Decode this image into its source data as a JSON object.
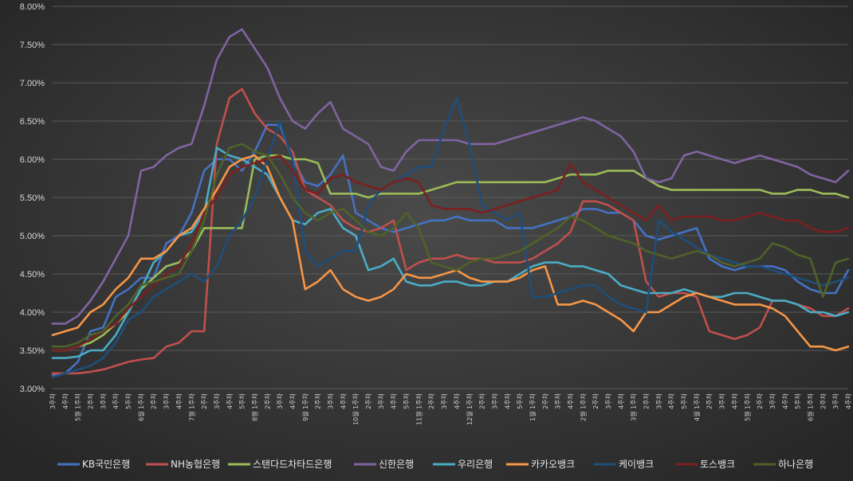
{
  "chart_data": {
    "type": "line",
    "y_unit": "%",
    "ylim": [
      3.0,
      8.0
    ],
    "y_ticks": [
      "3.00%",
      "3.50%",
      "4.00%",
      "4.50%",
      "5.00%",
      "5.50%",
      "6.00%",
      "6.50%",
      "7.00%",
      "7.50%",
      "8.00%"
    ],
    "grid": true,
    "legend_position": "bottom",
    "x_count": 64,
    "x_tick_labels": [
      "3주차",
      "4주차",
      "5월 1주차",
      "2주차",
      "3주차",
      "4주차",
      "5주차",
      "6월 1주차",
      "2주차",
      "3주차",
      "4주차",
      "7월 1주차",
      "2주차",
      "3주차",
      "4주차",
      "5주차",
      "8월 1주차",
      "2주차",
      "3주차",
      "4주차",
      "9월 1주차",
      "2주차",
      "3주차",
      "4주차",
      "10월 1주차",
      "2주차",
      "3주차",
      "4주차",
      "5주차",
      "11월 1주차",
      "2주차",
      "3주차",
      "4주차",
      "12월 1주차",
      "2주차",
      "3주차",
      "4주차",
      "5주차",
      "1월 1주차",
      "2주차",
      "3주차",
      "4주차",
      "2월 1주차",
      "2주차",
      "3주차",
      "4주차",
      "3월 1주차",
      "2주차",
      "3주차",
      "4주차",
      "5주차",
      "4월 1주차",
      "2주차",
      "3주차",
      "4주차",
      "5월 1주차",
      "2주차",
      "3주차",
      "4주차",
      "5주차",
      "6월 1주차",
      "2주차",
      "3주차",
      "4주차"
    ],
    "series": [
      {
        "name": "KB국민은행",
        "color": "#4472c4",
        "values": [
          3.18,
          3.2,
          3.35,
          3.75,
          3.8,
          4.2,
          4.3,
          4.45,
          4.45,
          4.9,
          5.0,
          5.3,
          5.85,
          6.0,
          6.0,
          5.85,
          6.1,
          6.45,
          6.45,
          6.0,
          5.7,
          5.65,
          5.8,
          6.05,
          5.3,
          5.2,
          5.1,
          5.05,
          5.1,
          5.15,
          5.2,
          5.2,
          5.25,
          5.2,
          5.2,
          5.2,
          5.1,
          5.1,
          5.1,
          5.15,
          5.2,
          5.25,
          5.35,
          5.35,
          5.3,
          5.3,
          5.2,
          5.0,
          4.95,
          5.0,
          5.05,
          5.1,
          4.7,
          4.6,
          4.55,
          4.6,
          4.6,
          4.6,
          4.55,
          4.4,
          4.3,
          4.25,
          4.25,
          4.55
        ]
      },
      {
        "name": "NH농협은행",
        "color": "#c0504d",
        "values": [
          3.2,
          3.2,
          3.2,
          3.22,
          3.25,
          3.3,
          3.35,
          3.38,
          3.4,
          3.55,
          3.6,
          3.75,
          3.75,
          6.2,
          6.8,
          6.92,
          6.6,
          6.4,
          6.3,
          6.1,
          5.6,
          5.5,
          5.4,
          5.2,
          5.1,
          5.05,
          5.1,
          5.2,
          4.55,
          4.65,
          4.7,
          4.7,
          4.75,
          4.7,
          4.7,
          4.65,
          4.65,
          4.65,
          4.7,
          4.8,
          4.9,
          5.05,
          5.45,
          5.45,
          5.4,
          5.3,
          5.2,
          4.4,
          4.2,
          4.25,
          4.25,
          4.2,
          3.75,
          3.7,
          3.65,
          3.7,
          3.8,
          4.15,
          4.15,
          4.1,
          4.05,
          3.95,
          3.95,
          4.05
        ]
      },
      {
        "name": "스탠다드차타드은행",
        "color": "#9bbb59",
        "values": [
          3.5,
          3.5,
          3.55,
          3.6,
          3.7,
          3.85,
          4.0,
          4.3,
          4.45,
          4.6,
          4.65,
          4.8,
          5.1,
          5.1,
          5.1,
          5.1,
          6.0,
          6.05,
          6.05,
          6.0,
          6.0,
          5.95,
          5.55,
          5.55,
          5.55,
          5.5,
          5.55,
          5.55,
          5.55,
          5.55,
          5.6,
          5.65,
          5.7,
          5.7,
          5.7,
          5.7,
          5.7,
          5.7,
          5.7,
          5.7,
          5.75,
          5.8,
          5.8,
          5.8,
          5.85,
          5.85,
          5.85,
          5.75,
          5.65,
          5.6,
          5.6,
          5.6,
          5.6,
          5.6,
          5.6,
          5.6,
          5.6,
          5.55,
          5.55,
          5.6,
          5.6,
          5.55,
          5.55,
          5.5
        ]
      },
      {
        "name": "신한은행",
        "color": "#8064a2",
        "values": [
          3.85,
          3.85,
          3.95,
          4.15,
          4.4,
          4.7,
          5.0,
          5.85,
          5.9,
          6.05,
          6.15,
          6.2,
          6.7,
          7.3,
          7.6,
          7.7,
          7.45,
          7.2,
          6.8,
          6.5,
          6.4,
          6.6,
          6.75,
          6.4,
          6.3,
          6.2,
          5.9,
          5.85,
          6.1,
          6.25,
          6.25,
          6.25,
          6.25,
          6.2,
          6.2,
          6.2,
          6.25,
          6.3,
          6.35,
          6.4,
          6.45,
          6.5,
          6.55,
          6.5,
          6.4,
          6.3,
          6.1,
          5.75,
          5.7,
          5.75,
          6.05,
          6.1,
          6.05,
          6.0,
          5.95,
          6.0,
          6.05,
          6.0,
          5.95,
          5.9,
          5.8,
          5.75,
          5.7,
          5.85
        ]
      },
      {
        "name": "우리은행",
        "color": "#4bacc6",
        "values": [
          3.4,
          3.4,
          3.42,
          3.5,
          3.5,
          3.7,
          4.0,
          4.3,
          4.65,
          4.8,
          5.0,
          5.05,
          5.3,
          6.15,
          6.05,
          6.0,
          5.9,
          5.8,
          5.5,
          5.2,
          5.15,
          5.3,
          5.35,
          5.1,
          5.0,
          4.55,
          4.6,
          4.7,
          4.4,
          4.35,
          4.35,
          4.4,
          4.4,
          4.35,
          4.35,
          4.4,
          4.4,
          4.5,
          4.6,
          4.65,
          4.65,
          4.6,
          4.6,
          4.55,
          4.5,
          4.35,
          4.3,
          4.25,
          4.25,
          4.25,
          4.3,
          4.25,
          4.2,
          4.2,
          4.25,
          4.25,
          4.2,
          4.15,
          4.15,
          4.1,
          4.0,
          4.0,
          3.95,
          4.0
        ]
      },
      {
        "name": "카카오뱅크",
        "color": "#f79646",
        "values": [
          3.7,
          3.75,
          3.8,
          4.0,
          4.1,
          4.3,
          4.45,
          4.7,
          4.7,
          4.8,
          5.0,
          5.1,
          5.35,
          5.6,
          5.9,
          6.0,
          6.05,
          5.9,
          5.5,
          5.2,
          4.3,
          4.4,
          4.55,
          4.3,
          4.2,
          4.15,
          4.2,
          4.3,
          4.5,
          4.45,
          4.45,
          4.5,
          4.55,
          4.45,
          4.4,
          4.4,
          4.4,
          4.45,
          4.55,
          4.6,
          4.1,
          4.1,
          4.15,
          4.1,
          4.0,
          3.9,
          3.75,
          4.0,
          4.0,
          4.1,
          4.2,
          4.25,
          4.2,
          4.15,
          4.1,
          4.1,
          4.1,
          4.05,
          3.95,
          3.75,
          3.55,
          3.55,
          3.5,
          3.55
        ]
      },
      {
        "name": "케이뱅크",
        "color": "#1f4e79",
        "values": [
          3.15,
          3.2,
          3.25,
          3.3,
          3.4,
          3.6,
          3.9,
          4.0,
          4.2,
          4.3,
          4.4,
          4.5,
          4.4,
          4.6,
          5.0,
          5.2,
          5.5,
          6.0,
          6.5,
          6.0,
          4.8,
          4.6,
          4.7,
          4.8,
          4.8,
          5.4,
          5.6,
          5.7,
          5.8,
          5.9,
          5.9,
          6.4,
          6.8,
          6.2,
          5.4,
          5.3,
          5.2,
          5.3,
          4.2,
          4.2,
          4.25,
          4.3,
          4.35,
          4.35,
          4.2,
          4.1,
          4.05,
          4.0,
          5.2,
          5.05,
          4.95,
          4.85,
          4.75,
          4.7,
          4.65,
          4.6,
          4.6,
          4.55,
          4.5,
          4.45,
          4.4,
          4.35,
          4.4,
          4.45
        ]
      },
      {
        "name": "토스뱅크",
        "color": "#7b2020",
        "values": [
          3.5,
          3.5,
          3.55,
          3.65,
          3.75,
          3.85,
          4.05,
          4.2,
          4.35,
          4.5,
          4.6,
          4.9,
          5.3,
          5.5,
          5.8,
          5.9,
          5.95,
          6.0,
          6.05,
          5.85,
          5.6,
          5.55,
          5.75,
          5.8,
          5.7,
          5.65,
          5.6,
          5.7,
          5.75,
          5.7,
          5.4,
          5.35,
          5.35,
          5.35,
          5.3,
          5.35,
          5.4,
          5.45,
          5.5,
          5.55,
          5.6,
          5.95,
          5.7,
          5.6,
          5.5,
          5.4,
          5.3,
          5.2,
          5.4,
          5.2,
          5.25,
          5.25,
          5.25,
          5.2,
          5.2,
          5.25,
          5.3,
          5.25,
          5.2,
          5.2,
          5.1,
          5.05,
          5.05,
          5.1
        ]
      },
      {
        "name": "하나은행",
        "color": "#4f6228",
        "values": [
          3.55,
          3.55,
          3.6,
          3.7,
          3.75,
          3.95,
          4.1,
          4.35,
          4.4,
          4.45,
          4.5,
          4.8,
          5.2,
          5.8,
          6.15,
          6.2,
          6.1,
          6.05,
          5.8,
          5.5,
          5.3,
          5.2,
          5.3,
          5.35,
          5.2,
          5.05,
          5.0,
          5.1,
          5.3,
          5.1,
          4.65,
          4.6,
          4.55,
          4.65,
          4.7,
          4.7,
          4.75,
          4.8,
          4.9,
          5.0,
          5.1,
          5.25,
          5.2,
          5.1,
          5.0,
          4.95,
          4.9,
          4.8,
          4.75,
          4.7,
          4.75,
          4.8,
          4.75,
          4.65,
          4.6,
          4.65,
          4.7,
          4.9,
          4.85,
          4.75,
          4.7,
          4.2,
          4.65,
          4.7
        ]
      }
    ]
  }
}
